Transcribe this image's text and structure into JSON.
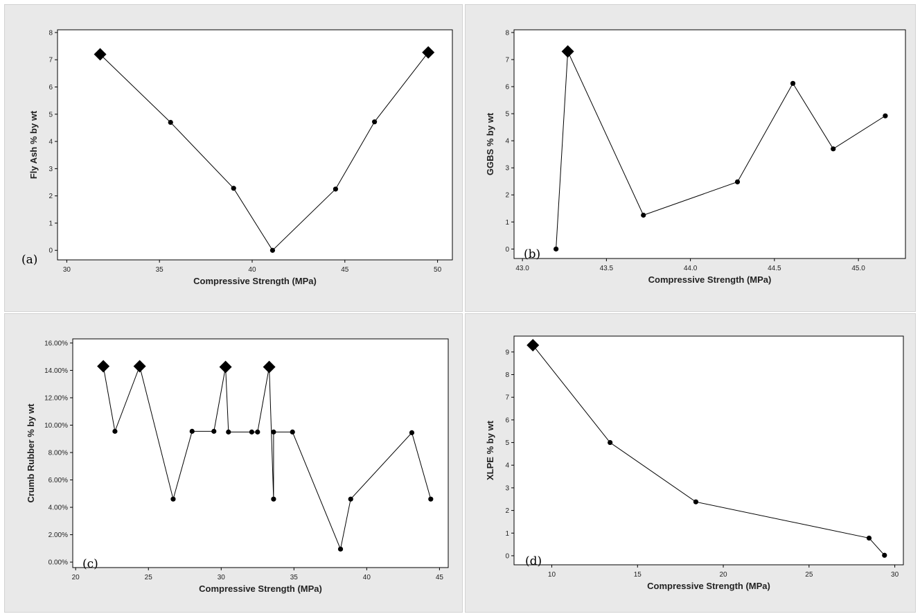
{
  "figure": {
    "panels": [
      {
        "id": "a",
        "label": "(a)"
      },
      {
        "id": "b",
        "label": "(b)"
      },
      {
        "id": "c",
        "label": "(c)"
      },
      {
        "id": "d",
        "label": "(d)"
      }
    ]
  },
  "chart_data": [
    {
      "type": "line",
      "panel": "a",
      "title": "",
      "xlabel": "Compressive Strength (MPa)",
      "ylabel": "Fly Ash % by wt",
      "xlim": [
        29.5,
        50.8
      ],
      "ylim": [
        -0.35,
        8.1
      ],
      "xticks": [
        30,
        35,
        40,
        45,
        50
      ],
      "xtick_labels": [
        "30",
        "35",
        "40",
        "45",
        "50"
      ],
      "yticks": [
        0,
        1,
        2,
        3,
        4,
        5,
        6,
        7,
        8
      ],
      "ytick_labels": [
        "0",
        "1",
        "2",
        "3",
        "4",
        "5",
        "6",
        "7",
        "8"
      ],
      "grid": false,
      "legend": "none",
      "series": [
        {
          "x": [
            31.8,
            35.6,
            39.0,
            41.1,
            44.5,
            46.6,
            49.5
          ],
          "y": [
            7.2,
            4.7,
            2.28,
            0.0,
            2.25,
            4.72,
            7.27
          ],
          "markers": [
            "diamond",
            "dot",
            "dot",
            "dot",
            "dot",
            "dot",
            "diamond"
          ]
        }
      ]
    },
    {
      "type": "line",
      "panel": "b",
      "title": "",
      "xlabel": "Compressive Strength (MPa)",
      "ylabel": "GGBS % by wt",
      "xlim": [
        42.95,
        45.28
      ],
      "ylim": [
        -0.35,
        8.1
      ],
      "xticks": [
        43.0,
        43.5,
        44.0,
        44.5,
        45.0
      ],
      "xtick_labels": [
        "43.0",
        "43.5",
        "44.0",
        "44.5",
        "45.0"
      ],
      "yticks": [
        0,
        1,
        2,
        3,
        4,
        5,
        6,
        7,
        8
      ],
      "ytick_labels": [
        "0",
        "1",
        "2",
        "3",
        "4",
        "5",
        "6",
        "7",
        "8"
      ],
      "grid": false,
      "legend": "none",
      "series": [
        {
          "x": [
            43.2,
            43.27,
            43.72,
            44.28,
            44.61,
            44.85,
            45.16
          ],
          "y": [
            0.0,
            7.3,
            1.25,
            2.48,
            6.12,
            3.7,
            4.92
          ],
          "markers": [
            "dot",
            "diamond",
            "dot",
            "dot",
            "dot",
            "dot",
            "dot"
          ]
        }
      ]
    },
    {
      "type": "line",
      "panel": "c",
      "title": "",
      "xlabel": "Compressive Strength (MPa)",
      "ylabel": "Crumb Rubber % by wt",
      "xlim": [
        19.8,
        45.6
      ],
      "ylim": [
        -0.4,
        16.3
      ],
      "xticks": [
        20,
        25,
        30,
        35,
        40,
        45
      ],
      "xtick_labels": [
        "20",
        "25",
        "30",
        "35",
        "40",
        "45"
      ],
      "yticks": [
        0,
        2,
        4,
        6,
        8,
        10,
        12,
        14,
        16
      ],
      "ytick_labels": [
        "0.00%",
        "2.00%",
        "4.00%",
        "6.00%",
        "8.00%",
        "10.00%",
        "12.00%",
        "14.00%",
        "16.00%"
      ],
      "grid": false,
      "legend": "none",
      "series": [
        {
          "x": [
            21.9,
            22.7,
            24.4,
            26.7,
            28.0,
            29.5,
            30.3,
            30.5,
            32.1,
            32.5,
            33.3,
            33.6,
            33.6,
            34.9,
            38.2,
            38.9,
            43.1,
            44.4
          ],
          "y": [
            14.3,
            9.55,
            14.3,
            4.6,
            9.55,
            9.55,
            14.25,
            9.5,
            9.5,
            9.5,
            14.25,
            4.6,
            9.5,
            9.5,
            0.95,
            4.6,
            9.45,
            4.6
          ],
          "markers": [
            "diamond",
            "dot",
            "diamond",
            "dot",
            "dot",
            "dot",
            "diamond",
            "dot",
            "dot",
            "dot",
            "diamond",
            "dot",
            "dot",
            "dot",
            "dot",
            "dot",
            "dot",
            "dot"
          ]
        }
      ]
    },
    {
      "type": "line",
      "panel": "d",
      "title": "",
      "xlabel": "Compressive Strength (MPa)",
      "ylabel": "XLPE % by wt",
      "xlim": [
        7.8,
        30.5
      ],
      "ylim": [
        -0.4,
        9.7
      ],
      "xticks": [
        10,
        15,
        20,
        25,
        30
      ],
      "xtick_labels": [
        "10",
        "15",
        "20",
        "25",
        "30"
      ],
      "yticks": [
        0,
        1,
        2,
        3,
        4,
        5,
        6,
        7,
        8,
        9
      ],
      "ytick_labels": [
        "0",
        "1",
        "2",
        "3",
        "4",
        "5",
        "6",
        "7",
        "8",
        "9"
      ],
      "grid": false,
      "legend": "none",
      "series": [
        {
          "x": [
            8.9,
            13.4,
            18.4,
            28.5,
            29.4
          ],
          "y": [
            9.3,
            5.0,
            2.38,
            0.78,
            0.02
          ],
          "markers": [
            "diamond",
            "dot",
            "dot",
            "dot",
            "dot"
          ]
        }
      ]
    }
  ]
}
